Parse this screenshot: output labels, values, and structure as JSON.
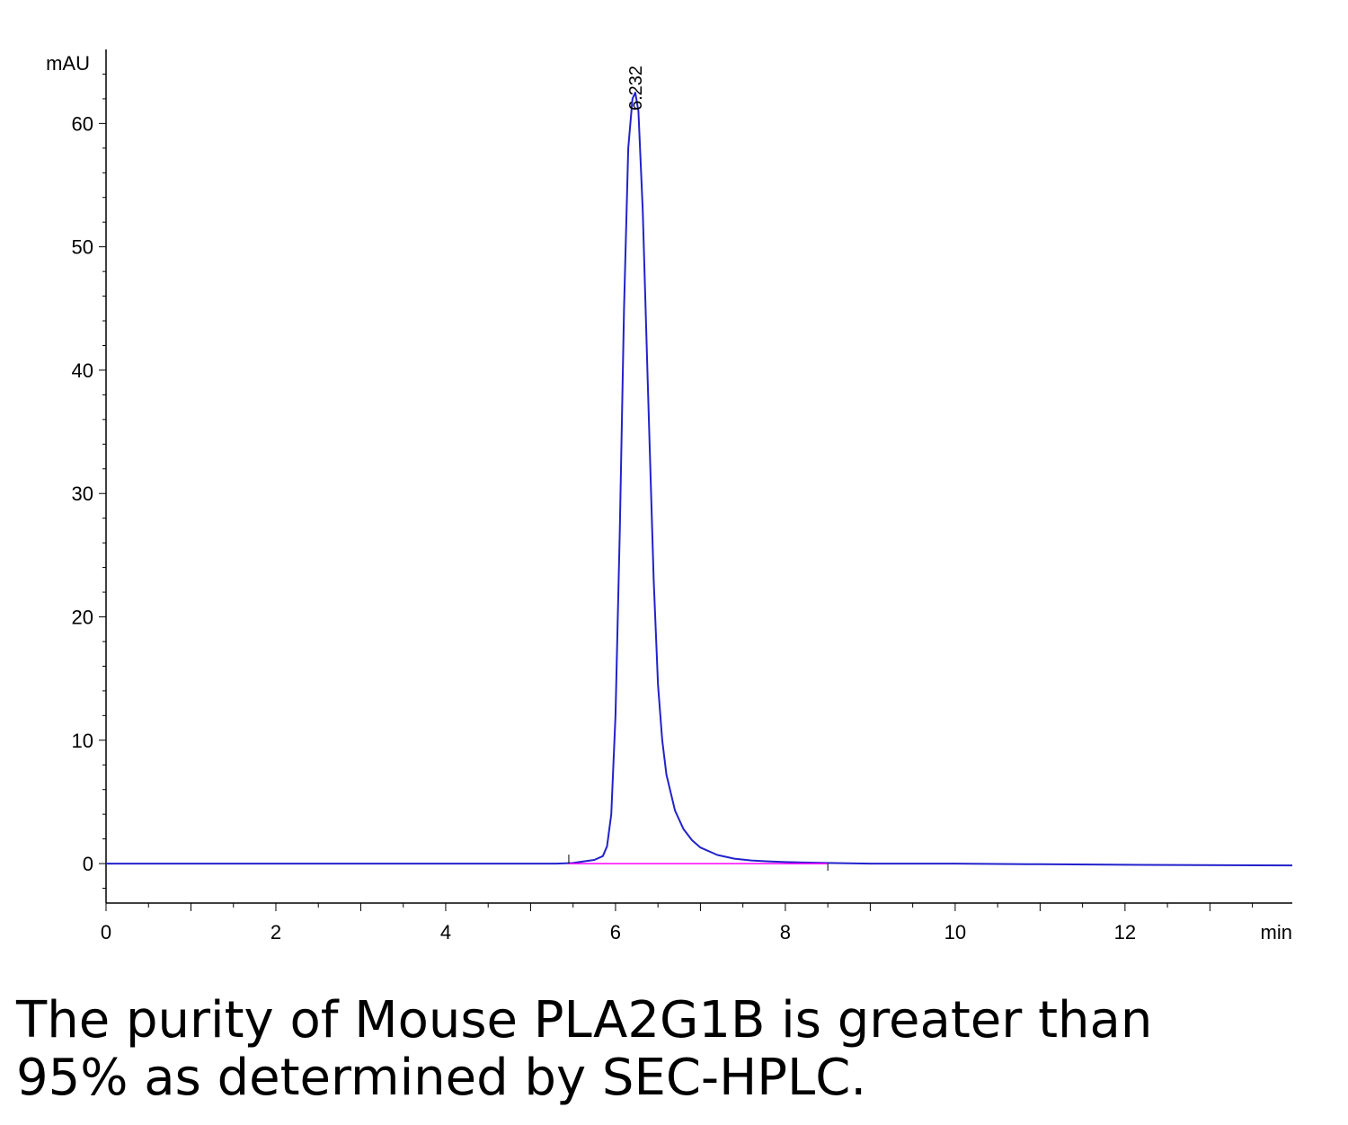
{
  "chart_data": {
    "type": "line",
    "title": "",
    "xlabel": "min",
    "ylabel": "mAU",
    "xlim": [
      0,
      13.97
    ],
    "ylim": [
      -3.2,
      66
    ],
    "x_ticks": [
      0,
      2,
      4,
      6,
      8,
      10,
      12
    ],
    "y_ticks": [
      0,
      10,
      20,
      30,
      40,
      50,
      60
    ],
    "x_tick_labels": [
      "0",
      "2",
      "4",
      "6",
      "8",
      "10",
      "12"
    ],
    "y_tick_labels": [
      "0",
      "10",
      "20",
      "30",
      "40",
      "50",
      "60"
    ],
    "grid": false,
    "legend": "none",
    "series": [
      {
        "color": "#2222cc",
        "x": [
          0,
          5.3,
          5.5,
          5.6,
          5.75,
          5.85,
          5.9,
          5.95,
          6.0,
          6.05,
          6.1,
          6.15,
          6.2,
          6.232,
          6.27,
          6.32,
          6.38,
          6.45,
          6.5,
          6.55,
          6.6,
          6.7,
          6.8,
          6.9,
          7.0,
          7.2,
          7.4,
          7.6,
          7.8,
          8.0,
          8.5,
          9.0,
          10.0,
          11.0,
          12.0,
          13.97
        ],
        "y": [
          0,
          0,
          0.05,
          0.15,
          0.3,
          0.6,
          1.4,
          4.0,
          12.0,
          27.0,
          45.0,
          58.0,
          62.0,
          62.5,
          61.0,
          53.0,
          39.0,
          23.0,
          14.5,
          10.0,
          7.2,
          4.3,
          2.8,
          1.9,
          1.3,
          0.7,
          0.4,
          0.25,
          0.18,
          0.12,
          0.05,
          0.0,
          0.0,
          -0.05,
          -0.1,
          -0.15
        ]
      },
      {
        "color": "#ff00ff",
        "x": [
          5.45,
          8.5
        ],
        "y": [
          0.0,
          0.0
        ]
      }
    ],
    "annotations": [
      {
        "text": "6.232",
        "x": 6.232,
        "y": 62.5
      }
    ]
  },
  "caption": {
    "line1": "The purity of Mouse PLA2G1B is greater than",
    "line2": "95% as determined by SEC-HPLC."
  },
  "colors": {
    "trace": "#2222cc",
    "baseline": "#ff00ff",
    "axis": "#000000"
  }
}
